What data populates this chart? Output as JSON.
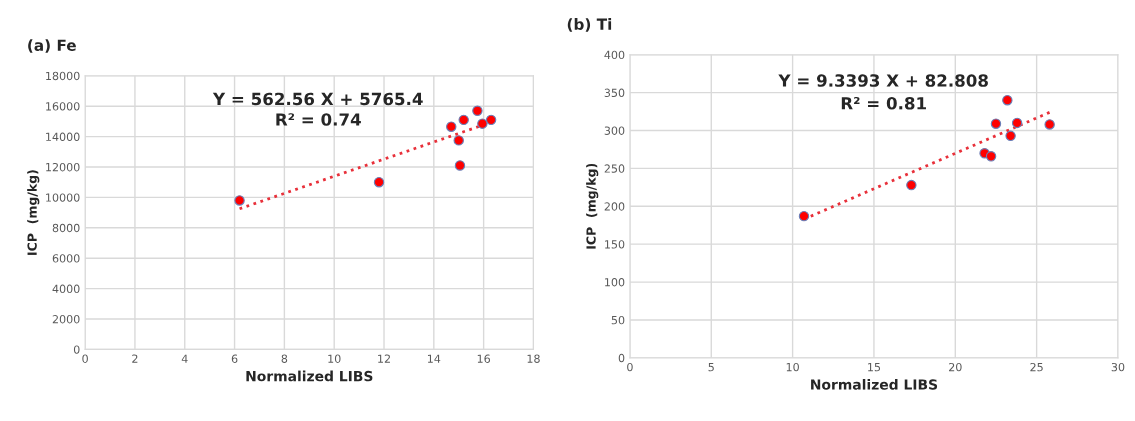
{
  "chart_data": [
    {
      "type": "scatter",
      "title": "(a) Fe",
      "xlabel": "Normalized LIBS",
      "ylabel": "ICP  (mg/kg)",
      "xlim": [
        0,
        18
      ],
      "xticks": [
        0,
        2,
        4,
        6,
        8,
        10,
        12,
        14,
        16,
        18
      ],
      "ylim": [
        0,
        18000
      ],
      "yticks": [
        0,
        2000,
        4000,
        6000,
        8000,
        10000,
        12000,
        14000,
        16000,
        18000
      ],
      "grid": true,
      "annotations": [
        "Y = 562.56 X + 5765.4",
        "R² = 0.74"
      ],
      "series": [
        {
          "color": "#ff0000",
          "marker": "circle",
          "x": [
            6.2,
            11.8,
            14.7,
            15.0,
            15.05,
            15.2,
            15.75,
            15.95,
            16.3
          ],
          "values": [
            9800,
            11000,
            14650,
            13750,
            12100,
            15100,
            15700,
            14850,
            15100
          ]
        },
        {
          "type": "line",
          "color": "#e8303a",
          "line_style": "dotted",
          "x": [
            6.2,
            16.3
          ],
          "values": [
            9250,
            14940
          ]
        }
      ]
    },
    {
      "type": "scatter",
      "title": "(b) Ti",
      "xlabel": "Normalized LIBS",
      "ylabel": "ICP  (mg/kg)",
      "xlim": [
        0,
        30
      ],
      "xticks": [
        0,
        5,
        10,
        15,
        20,
        25,
        30
      ],
      "ylim": [
        0,
        400
      ],
      "yticks": [
        0,
        50,
        100,
        150,
        200,
        250,
        300,
        350,
        400
      ],
      "grid": true,
      "annotations": [
        "Y = 9.3393 X + 82.808",
        "R² = 0.81"
      ],
      "series": [
        {
          "color": "#ff0000",
          "marker": "circle",
          "x": [
            10.7,
            17.3,
            21.8,
            22.2,
            22.5,
            23.2,
            23.4,
            23.8,
            25.8
          ],
          "values": [
            187,
            228,
            270,
            266,
            309,
            340,
            293,
            310,
            308
          ]
        },
        {
          "type": "line",
          "color": "#e8303a",
          "line_style": "dotted",
          "x": [
            10.7,
            25.8
          ],
          "values": [
            183,
            324
          ]
        }
      ]
    }
  ]
}
